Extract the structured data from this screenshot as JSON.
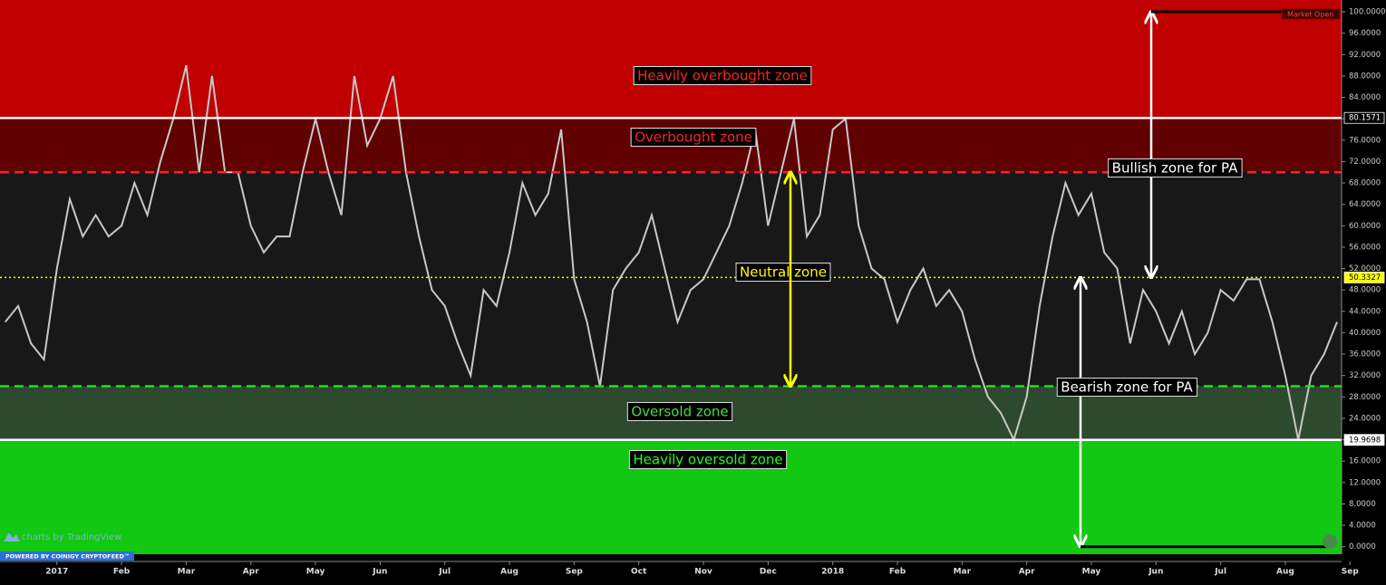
{
  "chart_data": {
    "type": "line",
    "x": [
      -0.8,
      -0.6,
      -0.4,
      -0.2,
      0,
      0.2,
      0.4,
      0.6,
      0.8,
      1.0,
      1.2,
      1.4,
      1.6,
      1.8,
      2.0,
      2.2,
      2.4,
      2.6,
      2.8,
      3.0,
      3.2,
      3.4,
      3.6,
      3.8,
      4.0,
      4.2,
      4.4,
      4.6,
      4.8,
      5.0,
      5.2,
      5.4,
      5.6,
      5.8,
      6.0,
      6.2,
      6.4,
      6.6,
      6.8,
      7.0,
      7.2,
      7.4,
      7.6,
      7.8,
      8.0,
      8.2,
      8.4,
      8.6,
      8.8,
      9.0,
      9.2,
      9.4,
      9.6,
      9.8,
      10.0,
      10.2,
      10.4,
      10.6,
      10.8,
      11.0,
      11.2,
      11.4,
      11.6,
      11.8,
      12.0,
      12.2,
      12.4,
      12.6,
      12.8,
      13.0,
      13.2,
      13.4,
      13.6,
      13.8,
      14.0,
      14.2,
      14.4,
      14.6,
      14.8,
      15.0,
      15.2,
      15.4,
      15.6,
      15.8,
      16.0,
      16.2,
      16.4,
      16.6,
      16.8,
      17.0,
      17.2,
      17.4,
      17.6,
      17.8,
      18.0,
      18.2,
      18.4,
      18.6,
      18.8,
      19.0,
      19.2,
      19.4,
      19.6,
      19.8
    ],
    "series": [
      {
        "color": "#c8c8c8",
        "values": [
          42,
          45,
          38,
          35,
          52,
          65,
          58,
          62,
          58,
          60,
          68,
          62,
          72,
          80,
          90,
          70,
          88,
          70,
          70,
          60,
          55,
          58,
          58,
          70,
          80,
          70,
          62,
          88,
          75,
          80,
          88,
          70,
          58,
          48,
          45,
          38,
          32,
          48,
          45,
          55,
          68,
          62,
          66,
          78,
          50,
          42,
          30,
          48,
          52,
          55,
          62,
          52,
          42,
          48,
          50,
          55,
          60,
          68,
          78,
          60,
          70,
          80,
          58,
          62,
          78,
          80,
          60,
          52,
          50,
          42,
          48,
          52,
          45,
          48,
          44,
          35,
          28,
          25,
          20,
          28,
          45,
          58,
          68,
          62,
          66,
          55,
          52,
          38,
          48,
          44,
          38,
          44,
          36,
          40,
          48,
          46,
          50,
          50,
          42,
          32,
          20,
          32,
          36,
          42
        ]
      }
    ],
    "xlim": [
      -0.88,
      19.87
    ],
    "xticks": [
      {
        "value": 0,
        "label": "2017"
      },
      {
        "value": 1,
        "label": "Feb"
      },
      {
        "value": 2,
        "label": "Mar"
      },
      {
        "value": 3,
        "label": "Apr"
      },
      {
        "value": 4,
        "label": "May"
      },
      {
        "value": 5,
        "label": "Jun"
      },
      {
        "value": 6,
        "label": "Jul"
      },
      {
        "value": 7,
        "label": "Aug"
      },
      {
        "value": 8,
        "label": "Sep"
      },
      {
        "value": 9,
        "label": "Oct"
      },
      {
        "value": 10,
        "label": "Nov"
      },
      {
        "value": 11,
        "label": "Dec"
      },
      {
        "value": 12,
        "label": "2018"
      },
      {
        "value": 13,
        "label": "Feb"
      },
      {
        "value": 14,
        "label": "Mar"
      },
      {
        "value": 15,
        "label": "Apr"
      },
      {
        "value": 16,
        "label": "May"
      },
      {
        "value": 17,
        "label": "Jun"
      },
      {
        "value": 18,
        "label": "Jul"
      },
      {
        "value": 19,
        "label": "Aug"
      },
      {
        "value": 20,
        "label": "Sep"
      }
    ],
    "ylim": [
      -1.4,
      102.2
    ],
    "yticks": [
      {
        "value": 0,
        "label": "0.0000"
      },
      {
        "value": 4,
        "label": "4.0000"
      },
      {
        "value": 8,
        "label": "8.0000"
      },
      {
        "value": 12,
        "label": "12.0000"
      },
      {
        "value": 16,
        "label": "16.0000"
      },
      {
        "value": 20,
        "label": "20.0000"
      },
      {
        "value": 24,
        "label": "24.0000"
      },
      {
        "value": 28,
        "label": "28.0000"
      },
      {
        "value": 32,
        "label": "32.0000"
      },
      {
        "value": 36,
        "label": "36.0000"
      },
      {
        "value": 40,
        "label": "40.0000"
      },
      {
        "value": 44,
        "label": "44.0000"
      },
      {
        "value": 48,
        "label": "48.0000"
      },
      {
        "value": 52,
        "label": "52.0000"
      },
      {
        "value": 56,
        "label": "56.0000"
      },
      {
        "value": 60,
        "label": "60.0000"
      },
      {
        "value": 64,
        "label": "64.0000"
      },
      {
        "value": 68,
        "label": "68.0000"
      },
      {
        "value": 72,
        "label": "72.0000"
      },
      {
        "value": 76,
        "label": "76.0000"
      },
      {
        "value": 80,
        "label": "80.0000"
      },
      {
        "value": 84,
        "label": "84.0000"
      },
      {
        "value": 88,
        "label": "88.0000"
      },
      {
        "value": 92,
        "label": "92.0000"
      },
      {
        "value": 96,
        "label": "96.0000"
      },
      {
        "value": 100,
        "label": "100.0000"
      }
    ],
    "levels": [
      {
        "value": 80.1571,
        "label": "80.1571",
        "style": "solid",
        "color": "#ffffff",
        "label_bg": "#000000",
        "label_color": "#ffffff"
      },
      {
        "value": 70,
        "style": "dashed",
        "color": "#ff2020"
      },
      {
        "value": 50.3327,
        "label": "50.3327",
        "style": "dotted",
        "color": "#ffff00",
        "label_bg": "#ffff00",
        "label_color": "#000000"
      },
      {
        "value": 30,
        "style": "dashed",
        "color": "#20e020"
      },
      {
        "value": 19.9698,
        "label": "19.9698",
        "style": "solid",
        "color": "#ffffff",
        "label_bg": "#ffffff",
        "label_color": "#000000"
      }
    ],
    "zones": [
      {
        "label": "Heavily overbought zone",
        "color": "#c00000",
        "text_color": "#ff2020"
      },
      {
        "label": "Overbought zone",
        "color": "#600000",
        "text_color": "#ff2020"
      },
      {
        "label": "Neutral zone",
        "color": "#181818",
        "text_color": "#ffff00"
      },
      {
        "label": "Oversold zone",
        "color": "#2e4a2e",
        "text_color": "#40e040"
      },
      {
        "label": "Heavily oversold zone",
        "color": "#12c812",
        "text_color": "#20ff20"
      }
    ],
    "annotations": [
      "Bullish zone for PA",
      "Bearish zone for PA"
    ],
    "branding": {
      "tradingview": "charts by TradingView",
      "coinigy": "POWERED BY COINIGY CRYPTOFEED™",
      "market": "Market Open"
    }
  }
}
